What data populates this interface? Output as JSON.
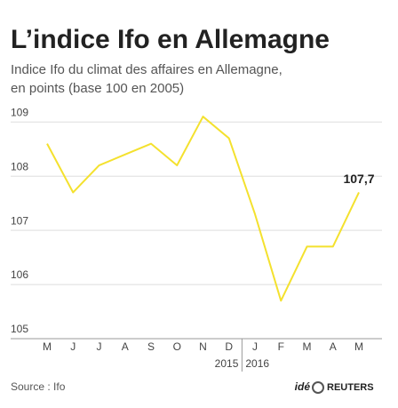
{
  "chart_data": {
    "type": "line",
    "title": "L’indice Ifo en Allemagne",
    "subtitle": [
      "Indice Ifo du climat des affaires en Allemagne,",
      "en points (base 100 en 2005)"
    ],
    "categories": [
      "M",
      "J",
      "J",
      "A",
      "S",
      "O",
      "N",
      "D",
      "J",
      "F",
      "M",
      "A",
      "M"
    ],
    "years": [
      "2015",
      "2016"
    ],
    "values": [
      108.6,
      107.7,
      108.2,
      108.4,
      108.6,
      108.2,
      109.1,
      108.7,
      107.3,
      105.7,
      106.7,
      106.7,
      107.7
    ],
    "value_labels": [
      null,
      null,
      null,
      null,
      null,
      null,
      null,
      null,
      null,
      null,
      null,
      null,
      "107,7"
    ],
    "color": "#f4e12e",
    "ylim": [
      105,
      109.3
    ],
    "yticks": [
      105,
      106,
      107,
      108,
      109
    ],
    "grid": true,
    "source": "Source : Ifo",
    "logo": [
      "idé",
      "REUTERS"
    ]
  }
}
